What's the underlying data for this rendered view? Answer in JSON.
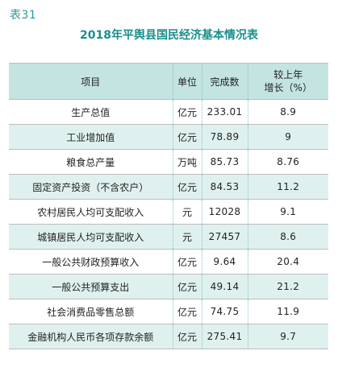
{
  "label": "表31",
  "title": "2018年平舆县国民经济基本情况表",
  "headers": {
    "item": "项目",
    "unit": "单位",
    "value": "完成数",
    "change_line1": "较上年",
    "change_line2": "增长（%）"
  },
  "rows": [
    {
      "item": "生产总值",
      "unit": "亿元",
      "value": "233.01",
      "change": "8.9"
    },
    {
      "item": "工业增加值",
      "unit": "亿元",
      "value": "78.89",
      "change": "9"
    },
    {
      "item": "粮食总产量",
      "unit": "万吨",
      "value": "85.73",
      "change": "8.76"
    },
    {
      "item": "固定资产投资（不含农户）",
      "unit": "亿元",
      "value": "84.53",
      "change": "11.2"
    },
    {
      "item": "农村居民人均可支配收入",
      "unit": "元",
      "value": "12028",
      "change": "9.1"
    },
    {
      "item": "城镇居民人均可支配收入",
      "unit": "元",
      "value": "27457",
      "change": "8.6"
    },
    {
      "item": "一般公共财政预算收入",
      "unit": "亿元",
      "value": "9.64",
      "change": "20.4"
    },
    {
      "item": "一般公共预算支出",
      "unit": "亿元",
      "value": "49.14",
      "change": "21.2"
    },
    {
      "item": "社会消费品零售总额",
      "unit": "亿元",
      "value": "74.75",
      "change": "11.9"
    },
    {
      "item": "金融机构人民币各项存款余额",
      "unit": "亿元",
      "value": "275.41",
      "change": "9.7"
    }
  ]
}
